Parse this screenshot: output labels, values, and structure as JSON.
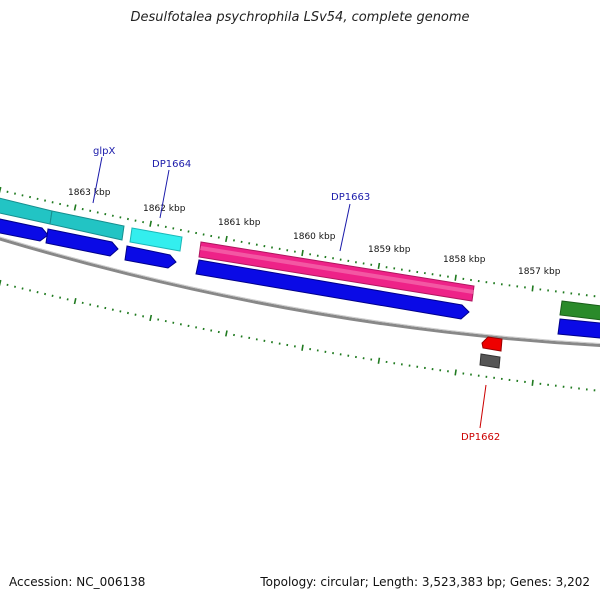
{
  "title": "Desulfotalea psychrophila LSv54, complete genome",
  "footer": {
    "accession": "Accession: NC_006138",
    "summary": "Topology: circular; Length: 3,523,383 bp; Genes: 3,202"
  },
  "scale_labels": [
    "1863 kbp",
    "1862 kbp",
    "1861 kbp",
    "1860 kbp",
    "1859 kbp",
    "1858 kbp",
    "1857 kbp"
  ],
  "gene_labels": [
    {
      "text": "glpX",
      "color": "#1a1aaa"
    },
    {
      "text": "DP1664",
      "color": "#1a1aaa"
    },
    {
      "text": "DP1663",
      "color": "#1a1aaa"
    },
    {
      "text": "DP1662",
      "color": "#cc0000"
    }
  ],
  "colors": {
    "cds_blue": "#0a0ae6",
    "teal": "#22c4c4",
    "cyan": "#33eeee",
    "magenta": "#ee2288",
    "green": "#2a8a2a",
    "red": "#ee0000",
    "gray": "#555555",
    "tick": "#1f7a1f",
    "backbone": "#888888"
  }
}
